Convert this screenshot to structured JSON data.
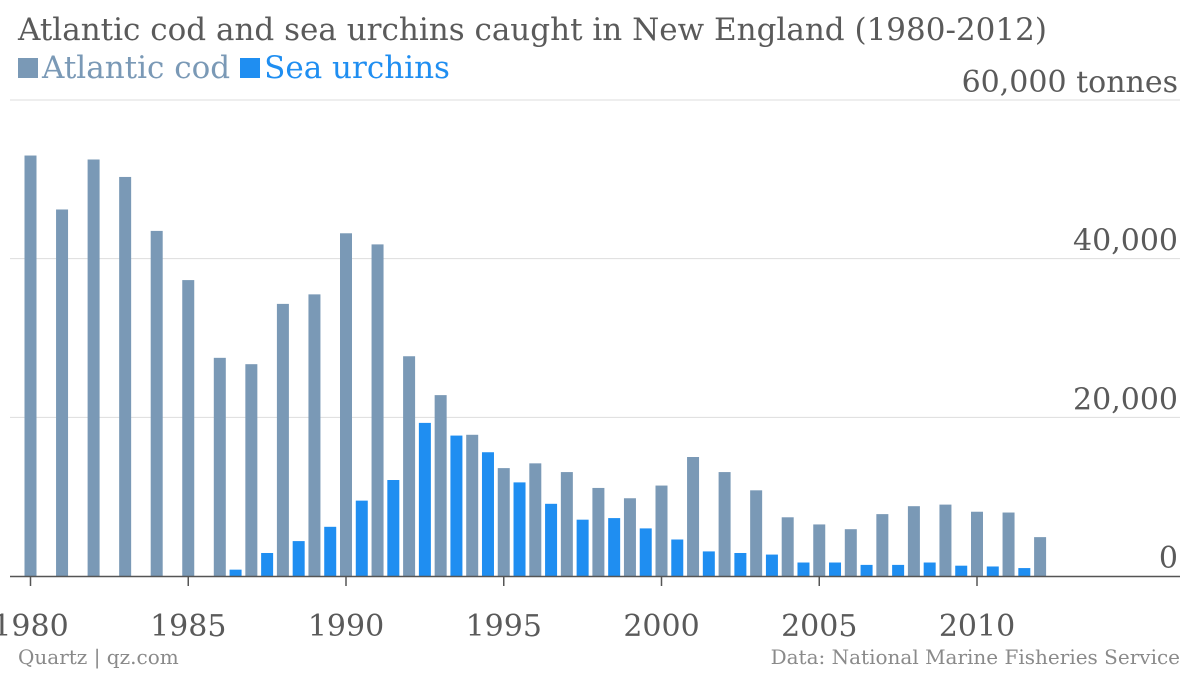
{
  "title": "Atlantic cod and sea urchins caught in New England (1980-2012)",
  "legend": [
    {
      "label": "Atlantic cod",
      "color": "#7a99b6"
    },
    {
      "label": "Sea urchins",
      "color": "#1f8ef1"
    }
  ],
  "footer": {
    "source_left": "Quartz | qz.com",
    "source_right": "Data: National Marine Fisheries Service"
  },
  "chart_data": {
    "type": "bar",
    "categories": [
      1980,
      1981,
      1982,
      1983,
      1984,
      1985,
      1986,
      1987,
      1988,
      1989,
      1990,
      1991,
      1992,
      1993,
      1994,
      1995,
      1996,
      1997,
      1998,
      1999,
      2000,
      2001,
      2002,
      2003,
      2004,
      2005,
      2006,
      2007,
      2008,
      2009,
      2010,
      2011,
      2012
    ],
    "series": [
      {
        "name": "Atlantic cod",
        "color": "#7a99b6",
        "values": [
          53000,
          46200,
          52500,
          50300,
          43500,
          37300,
          27500,
          26700,
          34300,
          35500,
          43200,
          41800,
          27700,
          22800,
          17800,
          13600,
          14200,
          13100,
          11100,
          9800,
          11400,
          15000,
          13100,
          10800,
          7400,
          6500,
          5900,
          7800,
          8800,
          9000,
          8100,
          8000,
          4900
        ]
      },
      {
        "name": "Sea urchins",
        "color": "#1f8ef1",
        "values": [
          0,
          0,
          0,
          0,
          0,
          0,
          0,
          800,
          2900,
          4400,
          6200,
          9500,
          12100,
          19300,
          17700,
          15600,
          11800,
          9100,
          7100,
          7300,
          6000,
          4600,
          3100,
          2900,
          2700,
          1700,
          1700,
          1400,
          1400,
          1700,
          1300,
          1200,
          1000
        ]
      }
    ],
    "ylim": [
      0,
      60000
    ],
    "yticks": [
      {
        "value": 0,
        "label": "0"
      },
      {
        "value": 20000,
        "label": "20,000"
      },
      {
        "value": 40000,
        "label": "40,000"
      },
      {
        "value": 60000,
        "label": "60,000 tonnes"
      }
    ],
    "xticks": [
      {
        "value": 1980,
        "label": "1980"
      },
      {
        "value": 1985,
        "label": "1985"
      },
      {
        "value": 1990,
        "label": "1990"
      },
      {
        "value": 1995,
        "label": "1995"
      },
      {
        "value": 2000,
        "label": "2000"
      },
      {
        "value": 2005,
        "label": "2005"
      },
      {
        "value": 2010,
        "label": "2010"
      }
    ],
    "grid": true
  }
}
